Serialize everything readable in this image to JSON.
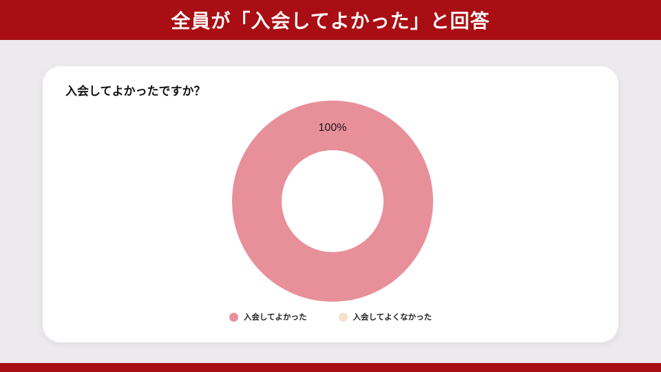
{
  "header": {
    "title": "全員が「入会してよかった」と回答"
  },
  "card": {
    "question": "入会してよかったですか？"
  },
  "chart_data": {
    "type": "pie",
    "subtype": "donut",
    "title": "入会してよかったですか？",
    "categories": [
      "入会してよかった",
      "入会してよくなかった"
    ],
    "values": [
      100,
      0
    ],
    "unit": "%",
    "data_labels": [
      "100%"
    ],
    "visible_data_label": "100%",
    "colors": [
      "#E8909A",
      "#F6E3C9"
    ],
    "legend_position": "bottom",
    "hole_ratio": 0.5
  },
  "colors": {
    "accent_red": "#A80E13",
    "page_background": "#EDEAEE",
    "card_background": "#FFFFFF",
    "donut_pink": "#E8909A",
    "donut_negative_cream": "#F6E3C9",
    "banner_text": "#FDF6F4"
  }
}
